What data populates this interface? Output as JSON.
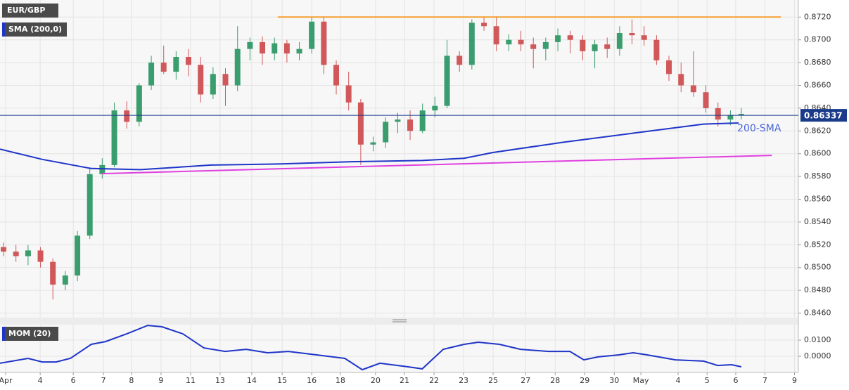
{
  "chart_data": [
    {
      "type": "candlestick",
      "title": "EUR/GBP",
      "up_color": "#3a9d6e",
      "down_color": "#d0585a",
      "x": [
        -0.07,
        0.35,
        0.76,
        1.18,
        1.6,
        2.02,
        2.43,
        2.85,
        3.27,
        3.68,
        4.1,
        4.52,
        4.93,
        5.35,
        5.77,
        6.19,
        6.6,
        7.02,
        7.44,
        7.85,
        8.27,
        8.69,
        9.1,
        9.52,
        9.94,
        10.36,
        10.77,
        11.19,
        11.61,
        12.02,
        12.44,
        12.86,
        13.27,
        13.69,
        14.11,
        14.53,
        14.94,
        15.36,
        15.78,
        16.19,
        16.61,
        17.03,
        17.44,
        17.86,
        18.28,
        18.69,
        19.11,
        19.53,
        19.94,
        20.36,
        20.78,
        21.2,
        21.61,
        22.03,
        22.45,
        22.86,
        23.28,
        23.7,
        24.11,
        24.53,
        24.9
      ],
      "open": [
        0.8518,
        0.8514,
        0.851,
        0.8515,
        0.8505,
        0.8485,
        0.8493,
        0.8528,
        0.8582,
        0.859,
        0.8638,
        0.8628,
        0.866,
        0.868,
        0.8672,
        0.8685,
        0.8678,
        0.8652,
        0.867,
        0.866,
        0.8692,
        0.8698,
        0.8688,
        0.8697,
        0.8688,
        0.8692,
        0.8716,
        0.8678,
        0.866,
        0.8645,
        0.8608,
        0.861,
        0.8628,
        0.863,
        0.862,
        0.8638,
        0.8642,
        0.8686,
        0.8678,
        0.8715,
        0.8712,
        0.8696,
        0.87,
        0.8696,
        0.8692,
        0.8698,
        0.8704,
        0.87,
        0.869,
        0.8696,
        0.8692,
        0.8706,
        0.8704,
        0.87,
        0.8682,
        0.867,
        0.866,
        0.8654,
        0.864,
        0.863,
        0.8634
      ],
      "high": [
        0.8522,
        0.852,
        0.852,
        0.8518,
        0.8508,
        0.8497,
        0.8532,
        0.8588,
        0.8596,
        0.8645,
        0.8646,
        0.8662,
        0.8686,
        0.8695,
        0.869,
        0.8692,
        0.8685,
        0.8676,
        0.8675,
        0.8712,
        0.8702,
        0.8703,
        0.8702,
        0.87,
        0.8698,
        0.872,
        0.872,
        0.8682,
        0.8672,
        0.8648,
        0.8615,
        0.8632,
        0.8636,
        0.8638,
        0.8644,
        0.865,
        0.87,
        0.869,
        0.8718,
        0.872,
        0.872,
        0.8705,
        0.8708,
        0.8702,
        0.8702,
        0.871,
        0.8708,
        0.8704,
        0.87,
        0.8702,
        0.8712,
        0.8718,
        0.8712,
        0.8704,
        0.8686,
        0.868,
        0.869,
        0.866,
        0.8645,
        0.8638,
        0.864
      ],
      "low": [
        0.851,
        0.8505,
        0.8502,
        0.85,
        0.8472,
        0.848,
        0.8488,
        0.8525,
        0.8578,
        0.8588,
        0.8622,
        0.8624,
        0.8656,
        0.867,
        0.8665,
        0.8668,
        0.8645,
        0.8648,
        0.8642,
        0.8655,
        0.8682,
        0.8678,
        0.8682,
        0.868,
        0.8682,
        0.8688,
        0.867,
        0.8652,
        0.8638,
        0.859,
        0.8602,
        0.8605,
        0.8618,
        0.8612,
        0.8618,
        0.8632,
        0.864,
        0.8672,
        0.8674,
        0.8708,
        0.869,
        0.869,
        0.869,
        0.8675,
        0.8682,
        0.869,
        0.8688,
        0.8682,
        0.8675,
        0.8684,
        0.8686,
        0.8696,
        0.8695,
        0.8678,
        0.8664,
        0.8654,
        0.865,
        0.8636,
        0.8624,
        0.8625,
        0.863
      ],
      "close": [
        0.8514,
        0.851,
        0.8515,
        0.8505,
        0.8485,
        0.8493,
        0.8528,
        0.8582,
        0.859,
        0.8638,
        0.8628,
        0.866,
        0.868,
        0.8672,
        0.8685,
        0.8678,
        0.8652,
        0.867,
        0.866,
        0.8692,
        0.8698,
        0.8688,
        0.8697,
        0.8688,
        0.8692,
        0.8716,
        0.8678,
        0.866,
        0.8645,
        0.8608,
        0.861,
        0.8628,
        0.863,
        0.862,
        0.8638,
        0.8642,
        0.8686,
        0.8678,
        0.8715,
        0.8712,
        0.8696,
        0.87,
        0.8696,
        0.8692,
        0.8698,
        0.8704,
        0.87,
        0.869,
        0.8696,
        0.8692,
        0.8706,
        0.8704,
        0.87,
        0.8682,
        0.867,
        0.866,
        0.8654,
        0.864,
        0.863,
        0.8634,
        0.8635
      ],
      "series": [
        {
          "name": "SMA (200,0)",
          "color": "#1f35c8",
          "x": [
            -0.19,
            1.24,
            2.9,
            4.57,
            6.95,
            9.33,
            11.71,
            14.1,
            15.52,
            16.48,
            18.86,
            21.24,
            23.62,
            24.81
          ],
          "values": [
            0.8604,
            0.8595,
            0.8587,
            0.8586,
            0.859,
            0.8591,
            0.8593,
            0.8594,
            0.8596,
            0.8601,
            0.861,
            0.8618,
            0.8626,
            0.8627
          ]
        },
        {
          "color": "#f5a030",
          "x": [
            9.21,
            26.24
          ],
          "values": [
            0.872,
            0.872
          ]
        },
        {
          "color": "#e040e0",
          "x": [
            3.26,
            25.93
          ],
          "values": [
            0.85825,
            0.85985
          ]
        }
      ],
      "annotation": "200-SMA",
      "last_price": {
        "value": 0.86337,
        "label": "0.86337"
      },
      "xlim": [
        -0.19,
        26.83
      ],
      "ylim": [
        0.8456,
        0.8735
      ],
      "yticks": [
        {
          "value": 0.846,
          "label": "0.8460"
        },
        {
          "value": 0.848,
          "label": "0.8480"
        },
        {
          "value": 0.85,
          "label": "0.8500"
        },
        {
          "value": 0.852,
          "label": "0.8520"
        },
        {
          "value": 0.854,
          "label": "0.8540"
        },
        {
          "value": 0.856,
          "label": "0.8560"
        },
        {
          "value": 0.858,
          "label": "0.8580"
        },
        {
          "value": 0.86,
          "label": "0.8600"
        },
        {
          "value": 0.862,
          "label": "0.8620"
        },
        {
          "value": 0.864,
          "label": "0.8640"
        },
        {
          "value": 0.866,
          "label": "0.8660"
        },
        {
          "value": 0.868,
          "label": "0.8680"
        },
        {
          "value": 0.87,
          "label": "0.8700"
        },
        {
          "value": 0.872,
          "label": "0.8720"
        }
      ],
      "grid": true
    },
    {
      "type": "line",
      "title": "MOM (20)",
      "series": [
        {
          "color": "#1f35c8",
          "x": [
            -0.19,
            0.76,
            1.24,
            1.71,
            2.19,
            2.9,
            3.38,
            4.1,
            4.81,
            5.29,
            6.0,
            6.71,
            7.43,
            8.14,
            8.86,
            9.57,
            10.52,
            11.48,
            12.07,
            12.67,
            13.62,
            14.1,
            14.81,
            15.52,
            16.0,
            16.71,
            17.43,
            18.38,
            19.1,
            19.57,
            20.05,
            20.76,
            21.24,
            21.71,
            22.67,
            23.62,
            24.1,
            24.57,
            24.9
          ],
          "values": [
            -0.0043,
            -0.0013,
            -0.0035,
            -0.0035,
            -0.0013,
            0.0074,
            0.0091,
            0.0139,
            0.0191,
            0.0183,
            0.0139,
            0.0052,
            0.003,
            0.0043,
            0.0022,
            0.003,
            0.0009,
            -0.0013,
            -0.0083,
            -0.0043,
            -0.0065,
            -0.0078,
            0.0043,
            0.0074,
            0.0087,
            0.0074,
            0.0043,
            0.003,
            0.003,
            -0.0022,
            -0.0004,
            0.0009,
            0.0022,
            0.0009,
            -0.0022,
            -0.003,
            -0.0057,
            -0.0052,
            -0.0065
          ]
        }
      ],
      "xlim": [
        -0.19,
        26.83
      ],
      "ylim": [
        -0.01,
        0.0196
      ],
      "yticks": [
        {
          "value": 0,
          "label": "0.0000"
        },
        {
          "value": 0.01,
          "label": "0.0100"
        }
      ],
      "xticks": [
        {
          "value": 0,
          "label": "Apr"
        },
        {
          "value": 1.17,
          "label": "4"
        },
        {
          "value": 2.29,
          "label": "6"
        },
        {
          "value": 3.31,
          "label": "7"
        },
        {
          "value": 4.26,
          "label": "8"
        },
        {
          "value": 5.26,
          "label": "9"
        },
        {
          "value": 6.26,
          "label": "11"
        },
        {
          "value": 7.26,
          "label": "13"
        },
        {
          "value": 8.33,
          "label": "14"
        },
        {
          "value": 9.36,
          "label": "15"
        },
        {
          "value": 10.36,
          "label": "16"
        },
        {
          "value": 11.33,
          "label": "18"
        },
        {
          "value": 12.52,
          "label": "20"
        },
        {
          "value": 13.5,
          "label": "21"
        },
        {
          "value": 14.5,
          "label": "22"
        },
        {
          "value": 15.5,
          "label": "23"
        },
        {
          "value": 16.5,
          "label": "25"
        },
        {
          "value": 17.6,
          "label": "27"
        },
        {
          "value": 18.6,
          "label": "28"
        },
        {
          "value": 19.6,
          "label": "29"
        },
        {
          "value": 20.6,
          "label": "30"
        },
        {
          "value": 21.5,
          "label": "May"
        },
        {
          "value": 22.76,
          "label": "4"
        },
        {
          "value": 23.74,
          "label": "5"
        },
        {
          "value": 24.71,
          "label": "6"
        },
        {
          "value": 25.7,
          "label": "7"
        },
        {
          "value": 26.7,
          "label": "9"
        }
      ],
      "grid": true
    }
  ]
}
